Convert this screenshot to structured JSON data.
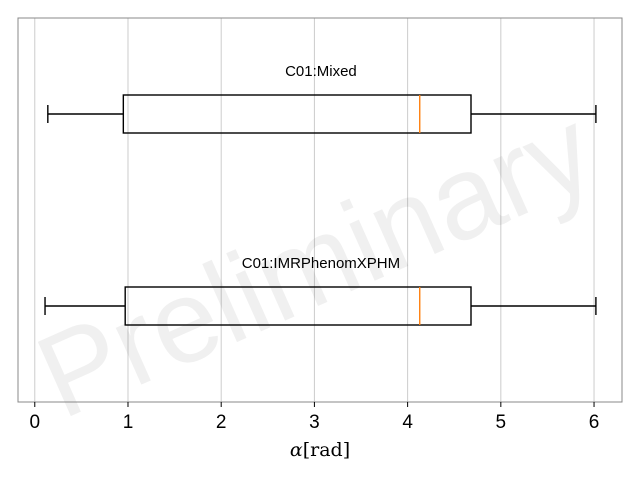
{
  "chart_data": {
    "type": "boxplot",
    "orientation": "horizontal",
    "xlabel_greek": "α",
    "xlabel_unit": "[rad]",
    "xlim": [
      -0.18,
      6.3
    ],
    "xticks": [
      0,
      1,
      2,
      3,
      4,
      5,
      6
    ],
    "grid": "vertical",
    "watermark": "Preliminary",
    "colors": {
      "box": "#000000",
      "median": "#ff7f0e",
      "grid": "#cccccc",
      "frame": "#888888"
    },
    "series": [
      {
        "name": "C01:Mixed",
        "whisker_low": 0.14,
        "q1": 0.95,
        "median": 4.13,
        "q3": 4.68,
        "whisker_high": 6.02
      },
      {
        "name": "C01:IMRPhenomXPHM",
        "whisker_low": 0.11,
        "q1": 0.97,
        "median": 4.13,
        "q3": 4.68,
        "whisker_high": 6.02
      }
    ]
  }
}
